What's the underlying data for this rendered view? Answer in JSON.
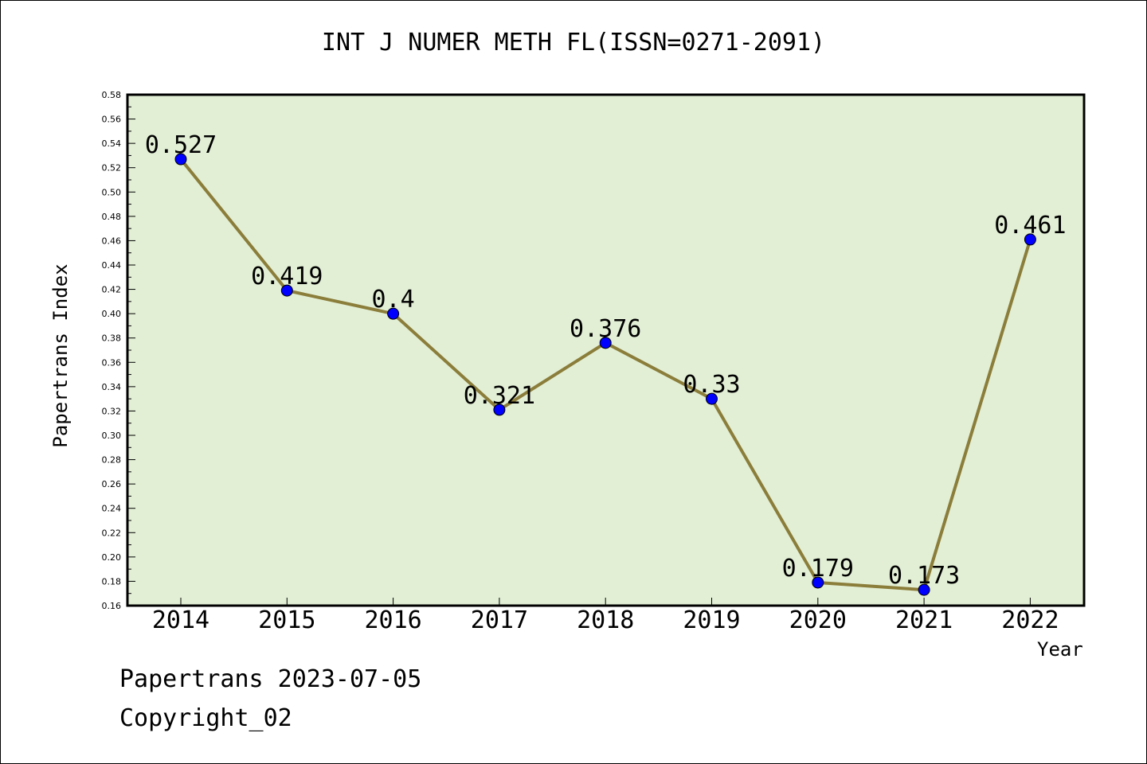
{
  "chart_data": {
    "type": "line",
    "title": "INT J NUMER METH FL(ISSN=0271-2091)",
    "xlabel": "Year",
    "ylabel": "Papertrans Index",
    "x": [
      "2014",
      "2015",
      "2016",
      "2017",
      "2018",
      "2019",
      "2020",
      "2021",
      "2022"
    ],
    "series": [
      {
        "values": [
          0.527,
          0.419,
          0.4,
          0.321,
          0.376,
          0.33,
          0.179,
          0.173,
          0.461
        ],
        "labels": [
          "0.527",
          "0.419",
          "0.4",
          "0.321",
          "0.376",
          "0.33",
          "0.179",
          "0.173",
          "0.461"
        ],
        "line_color": "#8b7d3a",
        "marker_color": "#0000ff"
      }
    ],
    "ylim": [
      0.16,
      0.58
    ],
    "yticks": [
      "0.16",
      "0.18",
      "0.20",
      "0.22",
      "0.24",
      "0.26",
      "0.28",
      "0.30",
      "0.32",
      "0.34",
      "0.36",
      "0.38",
      "0.40",
      "0.42",
      "0.44",
      "0.46",
      "0.48",
      "0.50",
      "0.52",
      "0.54",
      "0.56",
      "0.58"
    ],
    "grid": false,
    "plot_background": "#e2efd5"
  },
  "footer": {
    "date_line": "Papertrans 2023-07-05",
    "copyright": "Copyright_02"
  }
}
